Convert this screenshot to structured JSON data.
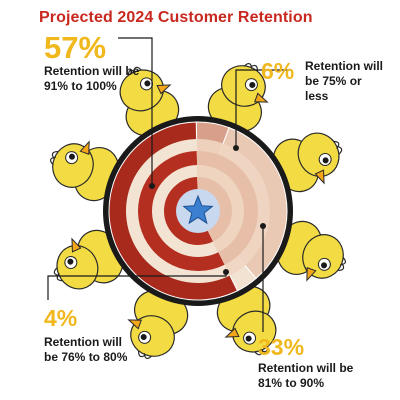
{
  "chart_data": {
    "type": "pie",
    "title": "Projected 2024 Customer Retention",
    "slices": [
      {
        "label": "Retention will be 91% to 100%",
        "value": 57,
        "display": "57%",
        "color": "#a82a1c"
      },
      {
        "label": "Retention will be 75% or less",
        "value": 6,
        "display": "6%",
        "color": "#d8a08a"
      },
      {
        "label": "Retention will be 81% to 90%",
        "value": 33,
        "display": "33%",
        "color": "#e9c9b4"
      },
      {
        "label": "Retention will be 76% to 80%",
        "value": 4,
        "display": "4%",
        "color": "#f2e2d2"
      }
    ],
    "label_parts": {
      "s57": "Retention will be 91% to 100%",
      "s6": "Retention will be 75% or less",
      "s4": "Retention will be 76% to 80%",
      "s33": "Retention will be 81% to 90%"
    }
  },
  "colors": {
    "title": "#c8281e",
    "percent": "#f0b81c",
    "chick": "#f3dc43",
    "beak": "#f4a61a",
    "star": "#3a7fd0"
  }
}
